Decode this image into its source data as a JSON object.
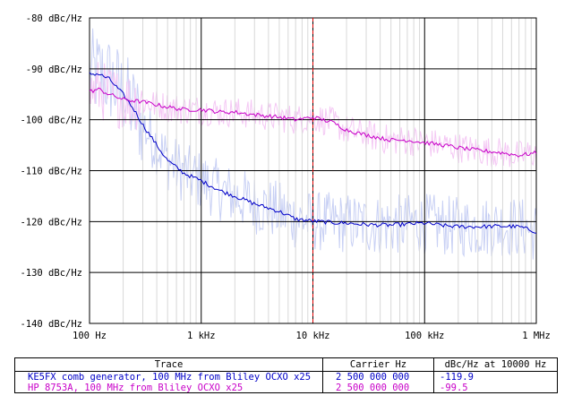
{
  "chart_data": {
    "type": "line",
    "x_scale": "log",
    "xlim": [
      100,
      1000000
    ],
    "ylim": [
      -140,
      -80
    ],
    "grid": true,
    "x_ticks": [
      {
        "value": 100,
        "label": "100 Hz"
      },
      {
        "value": 1000,
        "label": "1 kHz"
      },
      {
        "value": 10000,
        "label": "10 kHz"
      },
      {
        "value": 100000,
        "label": "100 kHz"
      },
      {
        "value": 1000000,
        "label": "1 MHz"
      }
    ],
    "y_ticks": [
      {
        "value": -80,
        "label": "-80 dBc/Hz"
      },
      {
        "value": -90,
        "label": "-90 dBc/Hz"
      },
      {
        "value": -100,
        "label": "-100 dBc/Hz"
      },
      {
        "value": -110,
        "label": "-110 dBc/Hz"
      },
      {
        "value": -120,
        "label": "-120 dBc/Hz"
      },
      {
        "value": -130,
        "label": "-130 dBc/Hz"
      },
      {
        "value": -140,
        "label": "-140 dBc/Hz"
      }
    ],
    "marker_x": 10000,
    "series": [
      {
        "name": "KE5FX comb generator, 100 MHz from Bliley OCXO x25",
        "color": "#0000c8",
        "raw_color": "#c8d0f4",
        "x": [
          100,
          120,
          150,
          200,
          250,
          300,
          400,
          500,
          700,
          1000,
          1500,
          2000,
          3000,
          5000,
          7000,
          10000,
          15000,
          20000,
          30000,
          50000,
          70000,
          100000,
          150000,
          200000,
          300000,
          500000,
          700000,
          1000000
        ],
        "values": [
          -91,
          -91,
          -92,
          -95,
          -98,
          -101,
          -105,
          -108,
          -110.5,
          -112,
          -114,
          -115,
          -116.5,
          -118,
          -119.5,
          -119.9,
          -120.2,
          -120.3,
          -120.6,
          -120.7,
          -120.5,
          -120.3,
          -120.8,
          -121,
          -121,
          -120.9,
          -121.0,
          -122
        ]
      },
      {
        "name": "HP 8753A, 100 MHz from Bliley OCXO x25",
        "color": "#c800c8",
        "raw_color": "#f4c8f4",
        "x": [
          100,
          120,
          150,
          200,
          300,
          500,
          700,
          1000,
          1500,
          2000,
          3000,
          5000,
          7000,
          10000,
          15000,
          20000,
          30000,
          50000,
          70000,
          100000,
          150000,
          200000,
          300000,
          500000,
          700000,
          1000000
        ],
        "values": [
          -94.5,
          -94,
          -95,
          -96,
          -96.5,
          -97.5,
          -98,
          -98,
          -98.5,
          -98.5,
          -99,
          -99.5,
          -100,
          -99.5,
          -100.5,
          -102,
          -103,
          -104,
          -104,
          -104.5,
          -105,
          -105.5,
          -106,
          -106.5,
          -107,
          -106.5
        ]
      }
    ]
  },
  "legend": {
    "headers": {
      "trace": "Trace",
      "carrier": "Carrier Hz",
      "value_at": "dBc/Hz at 10000 Hz"
    },
    "rows": [
      {
        "trace": "KE5FX comb generator, 100 MHz from Bliley OCXO x25",
        "carrier": "2 500 000 000",
        "value": "-119.9",
        "color": "#0000c8"
      },
      {
        "trace": "HP 8753A, 100 MHz from Bliley OCXO x25",
        "carrier": "2 500 000 000",
        "value": "-99.5",
        "color": "#c800c8"
      }
    ]
  }
}
